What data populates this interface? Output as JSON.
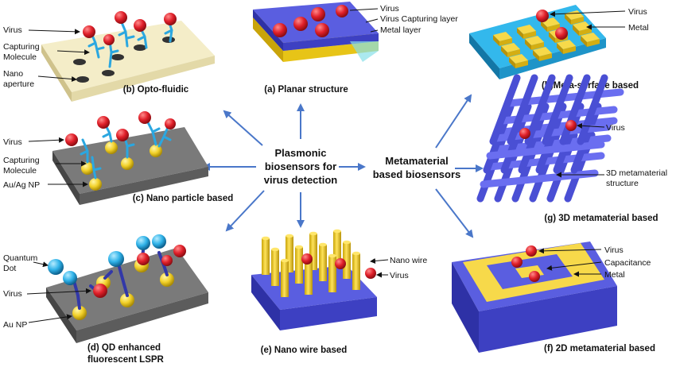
{
  "center": {
    "left_title": [
      "Plasmonic",
      "biosensors for",
      "virus detection"
    ],
    "right_title": [
      "Metamaterial",
      "based biosensors"
    ]
  },
  "panels": {
    "a": {
      "caption": "(a) Planar structure",
      "labels": {
        "virus": "Virus",
        "capturing_layer": "Virus Capturing layer",
        "metal_layer": "Metal layer"
      }
    },
    "b": {
      "caption": "(b) Opto-fluidic",
      "labels": {
        "virus": "Virus",
        "capturing_1": "Capturing",
        "capturing_2": "Molecule",
        "aperture_1": "Nano",
        "aperture_2": "aperture"
      }
    },
    "c": {
      "caption": "(c) Nano particle based",
      "labels": {
        "virus": "Virus",
        "capturing_1": "Capturing",
        "capturing_2": "Molecule",
        "np": "Au/Ag NP"
      }
    },
    "d": {
      "caption_1": "(d) QD enhanced",
      "caption_2": "fluorescent LSPR",
      "labels": {
        "qd_1": "Quantum",
        "qd_2": "Dot",
        "virus": "Virus",
        "np": "Au NP"
      }
    },
    "e": {
      "caption": "(e) Nano wire based",
      "labels": {
        "wire": "Nano wire",
        "virus": "Virus"
      }
    },
    "f": {
      "caption": "(f) 2D metamaterial based",
      "labels": {
        "virus": "Virus",
        "capacitance": "Capacitance",
        "metal": "Metal"
      }
    },
    "g": {
      "caption": "(g) 3D metamaterial based",
      "labels": {
        "virus": "Virus",
        "structure_1": "3D metamaterial",
        "structure_2": "structure"
      }
    },
    "h": {
      "caption": "(h)Meta-surface based",
      "labels": {
        "virus": "Virus",
        "metal": "Metal"
      }
    }
  },
  "colors": {
    "virus": "#e0202a",
    "gold": "#f2d12a",
    "substrate_blue": "#5a5ee0",
    "substrate_gray": "#7a7a7a",
    "cyan": "#33b8ec",
    "arrow": "#4a77c9",
    "cream": "#f4edc8"
  }
}
